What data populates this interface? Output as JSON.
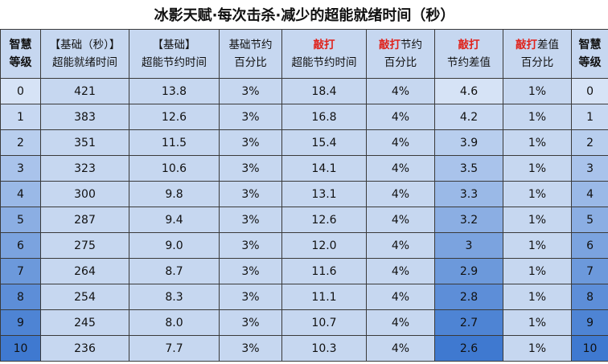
{
  "title": "冰影天赋·每次击杀·减少的超能就绪时间（秒）",
  "header": [
    {
      "top": [
        "智慧"
      ],
      "bottom": "等级"
    },
    {
      "top": [
        "【基础（秒）】"
      ],
      "bottom": "超能就绪时间"
    },
    {
      "top": [
        "【基础】"
      ],
      "bottom": "超能节约时间"
    },
    {
      "top": [
        "基础节约"
      ],
      "bottom": "百分比"
    },
    {
      "top": [
        "敲打"
      ],
      "bottom": "超能节约时间"
    },
    {
      "top": [
        "敲打",
        "节约"
      ],
      "bottom": "百分比"
    },
    {
      "top": [
        "敲打"
      ],
      "bottom": "节约差值"
    },
    {
      "top": [
        "敲打",
        "差值"
      ],
      "bottom": "百分比"
    },
    {
      "top": [
        "智慧"
      ],
      "bottom": "等级"
    }
  ],
  "rows": [
    [
      "0",
      "421",
      "13.8",
      "3%",
      "18.4",
      "4%",
      "4.6",
      "1%",
      "0"
    ],
    [
      "1",
      "383",
      "12.6",
      "3%",
      "16.8",
      "4%",
      "4.2",
      "1%",
      "1"
    ],
    [
      "2",
      "351",
      "11.5",
      "3%",
      "15.4",
      "4%",
      "3.9",
      "1%",
      "2"
    ],
    [
      "3",
      "323",
      "10.6",
      "3%",
      "14.1",
      "4%",
      "3.5",
      "1%",
      "3"
    ],
    [
      "4",
      "300",
      "9.8",
      "3%",
      "13.1",
      "4%",
      "3.3",
      "1%",
      "4"
    ],
    [
      "5",
      "287",
      "9.4",
      "3%",
      "12.6",
      "4%",
      "3.2",
      "1%",
      "5"
    ],
    [
      "6",
      "275",
      "9.0",
      "3%",
      "12.0",
      "4%",
      "3",
      "1%",
      "6"
    ],
    [
      "7",
      "264",
      "8.7",
      "3%",
      "11.6",
      "4%",
      "2.9",
      "1%",
      "7"
    ],
    [
      "8",
      "254",
      "8.3",
      "3%",
      "11.1",
      "4%",
      "2.8",
      "1%",
      "8"
    ],
    [
      "9",
      "245",
      "8.0",
      "3%",
      "10.7",
      "4%",
      "2.7",
      "1%",
      "9"
    ],
    [
      "10",
      "236",
      "7.7",
      "3%",
      "10.3",
      "4%",
      "2.6",
      "1%",
      "10"
    ]
  ]
}
